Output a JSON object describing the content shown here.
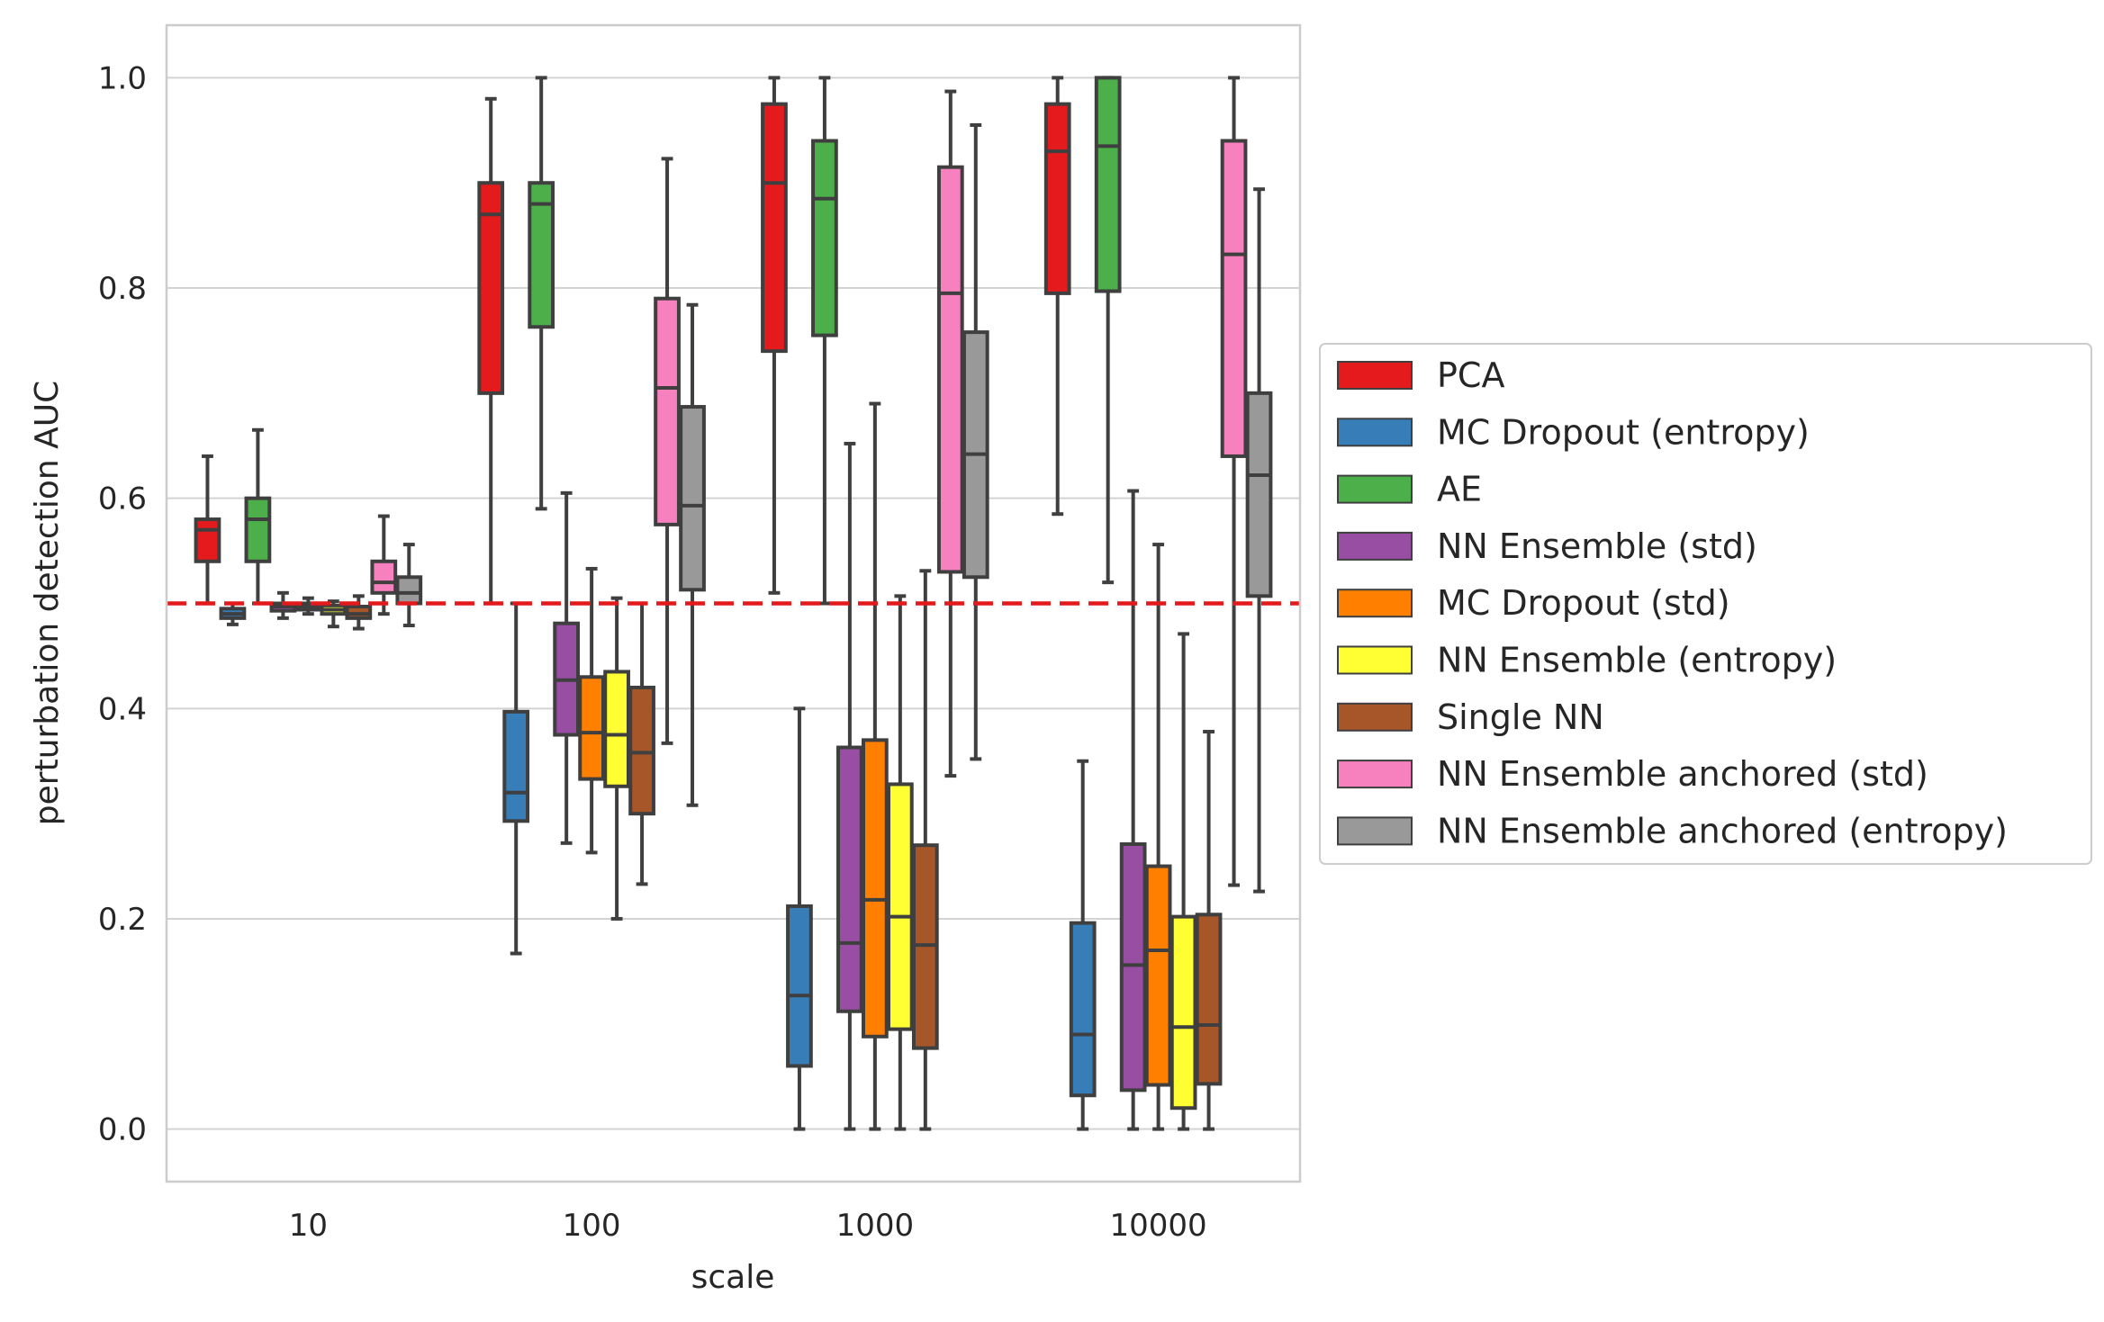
{
  "chart_data": {
    "type": "boxplot",
    "xlabel": "scale",
    "ylabel": "perturbation detection AUC",
    "ylim": [
      -0.05,
      1.05
    ],
    "yticks": [
      0.0,
      0.2,
      0.4,
      0.6,
      0.8,
      1.0
    ],
    "ytick_labels": [
      "0.0",
      "0.2",
      "0.4",
      "0.6",
      "0.8",
      "1.0"
    ],
    "grid": "horizontal",
    "legend_position": "right",
    "reference_line": {
      "y": 0.5,
      "color": "#e31a1c",
      "style": "dashed"
    },
    "categories": [
      "10",
      "100",
      "1000",
      "10000"
    ],
    "series": [
      {
        "name": "PCA",
        "color": "#e41a1c",
        "boxes": [
          {
            "whislo": 0.5,
            "q1": 0.54,
            "med": 0.57,
            "q3": 0.58,
            "whishi": 0.64
          },
          {
            "whislo": 0.5,
            "q1": 0.7,
            "med": 0.87,
            "q3": 0.9,
            "whishi": 0.98
          },
          {
            "whislo": 0.51,
            "q1": 0.74,
            "med": 0.9,
            "q3": 0.975,
            "whishi": 1.0
          },
          {
            "whislo": 0.585,
            "q1": 0.795,
            "med": 0.93,
            "q3": 0.975,
            "whishi": 1.0
          }
        ]
      },
      {
        "name": "MC Dropout (entropy)",
        "color": "#377eb8",
        "boxes": [
          {
            "whislo": 0.48,
            "q1": 0.486,
            "med": 0.49,
            "q3": 0.495,
            "whishi": 0.5
          },
          {
            "whislo": 0.167,
            "q1": 0.293,
            "med": 0.32,
            "q3": 0.397,
            "whishi": 0.5
          },
          {
            "whislo": 0.0,
            "q1": 0.06,
            "med": 0.127,
            "q3": 0.212,
            "whishi": 0.4
          },
          {
            "whislo": 0.0,
            "q1": 0.032,
            "med": 0.09,
            "q3": 0.196,
            "whishi": 0.35
          }
        ]
      },
      {
        "name": "AE",
        "color": "#4daf4a",
        "boxes": [
          {
            "whislo": 0.5,
            "q1": 0.54,
            "med": 0.58,
            "q3": 0.6,
            "whishi": 0.665
          },
          {
            "whislo": 0.59,
            "q1": 0.763,
            "med": 0.88,
            "q3": 0.9,
            "whishi": 1.0
          },
          {
            "whislo": 0.5,
            "q1": 0.755,
            "med": 0.885,
            "q3": 0.94,
            "whishi": 1.0
          },
          {
            "whislo": 0.52,
            "q1": 0.797,
            "med": 0.935,
            "q3": 1.0,
            "whishi": 1.0
          }
        ]
      },
      {
        "name": "NN Ensemble (std)",
        "color": "#984ea3",
        "boxes": [
          {
            "whislo": 0.486,
            "q1": 0.493,
            "med": 0.497,
            "q3": 0.5,
            "whishi": 0.51
          },
          {
            "whislo": 0.272,
            "q1": 0.375,
            "med": 0.427,
            "q3": 0.481,
            "whishi": 0.605
          },
          {
            "whislo": 0.0,
            "q1": 0.112,
            "med": 0.177,
            "q3": 0.363,
            "whishi": 0.652
          },
          {
            "whislo": 0.0,
            "q1": 0.037,
            "med": 0.156,
            "q3": 0.271,
            "whishi": 0.607
          }
        ]
      },
      {
        "name": "MC Dropout (std)",
        "color": "#ff7f00",
        "boxes": [
          {
            "whislo": 0.49,
            "q1": 0.494,
            "med": 0.497,
            "q3": 0.5,
            "whishi": 0.505
          },
          {
            "whislo": 0.263,
            "q1": 0.333,
            "med": 0.377,
            "q3": 0.43,
            "whishi": 0.533
          },
          {
            "whislo": 0.0,
            "q1": 0.088,
            "med": 0.218,
            "q3": 0.37,
            "whishi": 0.69
          },
          {
            "whislo": 0.0,
            "q1": 0.042,
            "med": 0.17,
            "q3": 0.25,
            "whishi": 0.556
          }
        ]
      },
      {
        "name": "NN Ensemble (entropy)",
        "color": "#ffff33",
        "boxes": [
          {
            "whislo": 0.478,
            "q1": 0.49,
            "med": 0.494,
            "q3": 0.498,
            "whishi": 0.502
          },
          {
            "whislo": 0.2,
            "q1": 0.326,
            "med": 0.375,
            "q3": 0.435,
            "whishi": 0.505
          },
          {
            "whislo": 0.0,
            "q1": 0.095,
            "med": 0.202,
            "q3": 0.328,
            "whishi": 0.507
          },
          {
            "whislo": 0.0,
            "q1": 0.02,
            "med": 0.097,
            "q3": 0.202,
            "whishi": 0.471
          }
        ]
      },
      {
        "name": "Single NN",
        "color": "#a65628",
        "boxes": [
          {
            "whislo": 0.476,
            "q1": 0.486,
            "med": 0.49,
            "q3": 0.497,
            "whishi": 0.507
          },
          {
            "whislo": 0.233,
            "q1": 0.3,
            "med": 0.358,
            "q3": 0.42,
            "whishi": 0.5
          },
          {
            "whislo": 0.0,
            "q1": 0.077,
            "med": 0.175,
            "q3": 0.27,
            "whishi": 0.531
          },
          {
            "whislo": 0.0,
            "q1": 0.043,
            "med": 0.099,
            "q3": 0.204,
            "whishi": 0.378
          }
        ]
      },
      {
        "name": "NN Ensemble anchored (std)",
        "color": "#f781bf",
        "boxes": [
          {
            "whislo": 0.49,
            "q1": 0.51,
            "med": 0.52,
            "q3": 0.54,
            "whishi": 0.583
          },
          {
            "whislo": 0.367,
            "q1": 0.575,
            "med": 0.705,
            "q3": 0.79,
            "whishi": 0.923
          },
          {
            "whislo": 0.336,
            "q1": 0.53,
            "med": 0.795,
            "q3": 0.915,
            "whishi": 0.987
          },
          {
            "whislo": 0.232,
            "q1": 0.64,
            "med": 0.832,
            "q3": 0.94,
            "whishi": 1.0
          }
        ]
      },
      {
        "name": "NN Ensemble anchored (entropy)",
        "color": "#999999",
        "boxes": [
          {
            "whislo": 0.479,
            "q1": 0.5,
            "med": 0.51,
            "q3": 0.525,
            "whishi": 0.556
          },
          {
            "whislo": 0.308,
            "q1": 0.513,
            "med": 0.593,
            "q3": 0.687,
            "whishi": 0.784
          },
          {
            "whislo": 0.352,
            "q1": 0.525,
            "med": 0.642,
            "q3": 0.758,
            "whishi": 0.955
          },
          {
            "whislo": 0.226,
            "q1": 0.507,
            "med": 0.622,
            "q3": 0.7,
            "whishi": 0.894
          }
        ]
      }
    ]
  }
}
